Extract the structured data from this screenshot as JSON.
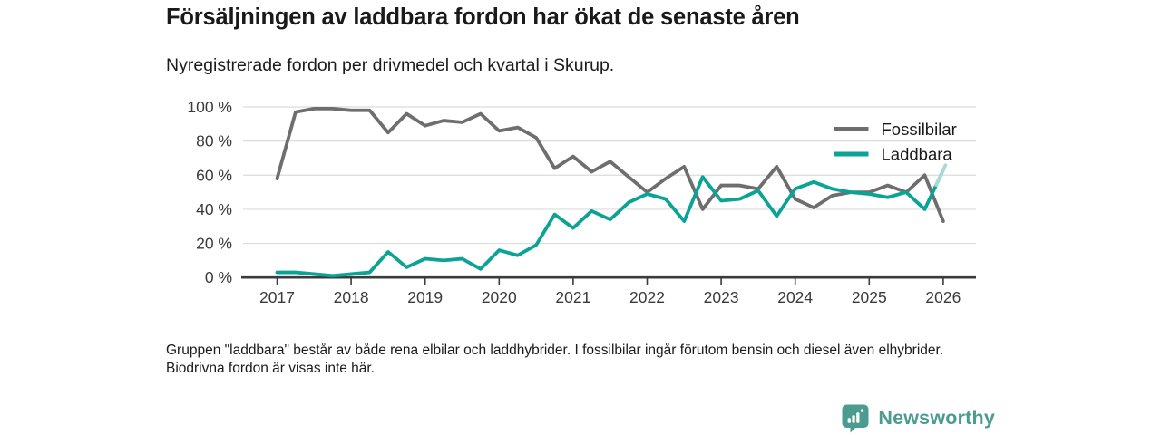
{
  "header": {
    "title": "Försäljningen av laddbara fordon har ökat de senaste åren",
    "subtitle": "Nyregistrerade fordon per drivmedel och kvartal i Skurup."
  },
  "chart_data": {
    "type": "line",
    "title": "Försäljningen av laddbara fordon har ökat de senaste åren",
    "subtitle": "Nyregistrerade fordon per drivmedel och kvartal i Skurup.",
    "x_unit": "kvartal",
    "quarters": [
      "2017 K1",
      "2017 K2",
      "2017 K3",
      "2017 K4",
      "2018 K1",
      "2018 K2",
      "2018 K3",
      "2018 K4",
      "2019 K1",
      "2019 K2",
      "2019 K3",
      "2019 K4",
      "2020 K1",
      "2020 K2",
      "2020 K3",
      "2020 K4",
      "2021 K1",
      "2021 K2",
      "2021 K3",
      "2021 K4",
      "2022 K1",
      "2022 K2",
      "2022 K3",
      "2022 K4",
      "2023 K1",
      "2023 K2",
      "2023 K3",
      "2023 K4",
      "2024 K1",
      "2024 K2",
      "2024 K3",
      "2024 K4",
      "2025 K1",
      "2025 K2",
      "2025 K3",
      "2025 K4",
      "2026 K1"
    ],
    "year_ticks": [
      "2017",
      "2018",
      "2019",
      "2020",
      "2021",
      "2022",
      "2023",
      "2024",
      "2025",
      "2026"
    ],
    "ylim": [
      0,
      100
    ],
    "yticks": [
      0,
      20,
      40,
      60,
      80,
      100
    ],
    "ytick_suffix": " %",
    "grid": true,
    "legend_position": "top-right",
    "series": [
      {
        "name": "Fossilbilar",
        "color": "#6e6e6e",
        "values": [
          58,
          97,
          99,
          99,
          98,
          98,
          85,
          96,
          89,
          92,
          91,
          96,
          86,
          88,
          82,
          64,
          71,
          62,
          68,
          59,
          50,
          58,
          65,
          40,
          54,
          54,
          52,
          65,
          46,
          41,
          48,
          50,
          50,
          54,
          50,
          60,
          33
        ]
      },
      {
        "name": "Laddbara",
        "color": "#0aa396",
        "tip_color": "#a9dbd3",
        "values": [
          3,
          3,
          2,
          1,
          2,
          3,
          15,
          6,
          11,
          10,
          11,
          5,
          16,
          13,
          19,
          37,
          29,
          39,
          34,
          44,
          49,
          46,
          33,
          59,
          45,
          46,
          51,
          36,
          52,
          56,
          52,
          50,
          49,
          47,
          50,
          40,
          63
        ]
      }
    ],
    "colors": {
      "grid": "#dcdcdc",
      "axis": "#3b3b3b",
      "tick_label": "#3a3a3a",
      "legend_label": "#1a1a1a"
    }
  },
  "footnote": {
    "text": "Gruppen \"laddbara\" består av både rena elbilar och laddhybrider. I fossilbilar ingår förutom bensin och diesel även elhybrider. Biodrivna fordon är visas inte här."
  },
  "logo": {
    "text": "Newsworthy",
    "color": "#4a9b90"
  }
}
